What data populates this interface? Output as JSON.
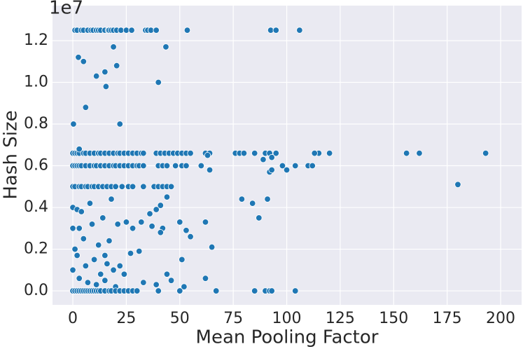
{
  "chart_data": {
    "type": "scatter",
    "x_label": "Mean Pooling Factor",
    "y_label": "Hash Size",
    "y_offset_label": "1e7",
    "color": "#1f77b4",
    "grid": true,
    "xlim": [
      -9.5,
      209.8
    ],
    "ylim": [
      -0.067,
      1.368
    ],
    "xticks": [
      0,
      25,
      50,
      75,
      100,
      125,
      150,
      175,
      200
    ],
    "yticks": [
      {
        "value": 0,
        "label": "0.0"
      },
      0.2,
      0.4,
      0.6,
      0.8,
      {
        "value": 1,
        "label": "1.0"
      },
      1.2
    ],
    "x": [
      1,
      2,
      4,
      5,
      7,
      8.5,
      9.5,
      11,
      12,
      13,
      15,
      16.5,
      17,
      18,
      19,
      20.5,
      22.5,
      25,
      27.5,
      34,
      35,
      36.5,
      39,
      53.5,
      92.5,
      95,
      106,
      2.6,
      5,
      19,
      43.5,
      11,
      15,
      20.5,
      15.5,
      40,
      6,
      0.3,
      22,
      0,
      1,
      2,
      3,
      5,
      6,
      8,
      10,
      12,
      13,
      15,
      17,
      19,
      21,
      22,
      24,
      26,
      28,
      30,
      32,
      33,
      39,
      41,
      43,
      45,
      47,
      49,
      51,
      53,
      55,
      62,
      64,
      76,
      78,
      80,
      85,
      90,
      92,
      95,
      115,
      120,
      156,
      162,
      193,
      3,
      0,
      1,
      2,
      3,
      4,
      6,
      8,
      10,
      11,
      13,
      15,
      17,
      19,
      20,
      22,
      24,
      26,
      28,
      30,
      31,
      33,
      40,
      42,
      44,
      48,
      51,
      53,
      60,
      98,
      104,
      110,
      112,
      92,
      100,
      64,
      93,
      89,
      93,
      63,
      113,
      0,
      1,
      3,
      4,
      6,
      7,
      9,
      10,
      12,
      14,
      16,
      18,
      20,
      23,
      26,
      28,
      33,
      38,
      40,
      42,
      44,
      46,
      180,
      0,
      2,
      4,
      8,
      14,
      18,
      21,
      25,
      28,
      32,
      36,
      39,
      41,
      42,
      44,
      50,
      53,
      55,
      62,
      79,
      84,
      87,
      91,
      0,
      3,
      5,
      9,
      12,
      15,
      17,
      1,
      2,
      6,
      10,
      13,
      16,
      19,
      22,
      27,
      31,
      37,
      41,
      51,
      65,
      0,
      3,
      7,
      11,
      15,
      20,
      24,
      33,
      39,
      44,
      46,
      52,
      62,
      0,
      1,
      2,
      3,
      4,
      5,
      6,
      7,
      8,
      9,
      10,
      11,
      12,
      13,
      15,
      17,
      18,
      20,
      22,
      24,
      26,
      28,
      30,
      40,
      50,
      67,
      85,
      90,
      92,
      93,
      104
    ],
    "values": [
      1.25,
      1.25,
      1.25,
      1.25,
      1.25,
      1.25,
      1.25,
      1.25,
      1.25,
      1.25,
      1.25,
      1.25,
      1.25,
      1.25,
      1.25,
      1.25,
      1.25,
      1.25,
      1.25,
      1.25,
      1.25,
      1.25,
      1.25,
      1.25,
      1.25,
      1.25,
      1.25,
      1.12,
      1.1,
      1.17,
      1.17,
      1.03,
      1.05,
      1.08,
      0.98,
      1.0,
      0.88,
      0.8,
      0.8,
      0.66,
      0.66,
      0.66,
      0.66,
      0.66,
      0.66,
      0.66,
      0.66,
      0.66,
      0.66,
      0.66,
      0.66,
      0.66,
      0.66,
      0.66,
      0.66,
      0.66,
      0.66,
      0.66,
      0.66,
      0.66,
      0.66,
      0.66,
      0.66,
      0.66,
      0.66,
      0.66,
      0.66,
      0.66,
      0.66,
      0.66,
      0.66,
      0.66,
      0.66,
      0.66,
      0.66,
      0.66,
      0.66,
      0.66,
      0.66,
      0.66,
      0.66,
      0.66,
      0.66,
      0.68,
      0.6,
      0.6,
      0.6,
      0.6,
      0.6,
      0.6,
      0.6,
      0.6,
      0.6,
      0.6,
      0.6,
      0.6,
      0.6,
      0.6,
      0.6,
      0.6,
      0.6,
      0.6,
      0.6,
      0.6,
      0.6,
      0.6,
      0.6,
      0.6,
      0.6,
      0.6,
      0.6,
      0.6,
      0.6,
      0.6,
      0.6,
      0.6,
      0.57,
      0.58,
      0.58,
      0.58,
      0.63,
      0.64,
      0.65,
      0.66,
      0.5,
      0.5,
      0.5,
      0.5,
      0.5,
      0.5,
      0.5,
      0.5,
      0.5,
      0.5,
      0.5,
      0.5,
      0.5,
      0.5,
      0.5,
      0.5,
      0.5,
      0.5,
      0.5,
      0.5,
      0.5,
      0.5,
      0.51,
      0.4,
      0.39,
      0.38,
      0.42,
      0.35,
      0.44,
      0.32,
      0.33,
      0.3,
      0.33,
      0.37,
      0.39,
      0.41,
      0.3,
      0.45,
      0.33,
      0.29,
      0.26,
      0.33,
      0.44,
      0.42,
      0.35,
      0.44,
      0.3,
      0.3,
      0.25,
      0.32,
      0.22,
      0.17,
      0.24,
      0.2,
      0.17,
      0.12,
      0.15,
      0.08,
      0.13,
      0.1,
      0.12,
      0.18,
      0.19,
      0.31,
      0.28,
      0.15,
      0.21,
      0.1,
      0.06,
      0.04,
      0.03,
      0.05,
      0.02,
      0.08,
      0.04,
      0.03,
      0.08,
      0.05,
      0.02,
      0.06,
      0,
      0,
      0,
      0,
      0,
      0,
      0,
      0,
      0,
      0,
      0,
      0,
      0,
      0,
      0,
      0,
      0,
      0,
      0,
      0,
      0,
      0,
      0,
      0,
      0,
      0,
      0,
      0,
      0,
      0,
      0
    ]
  }
}
